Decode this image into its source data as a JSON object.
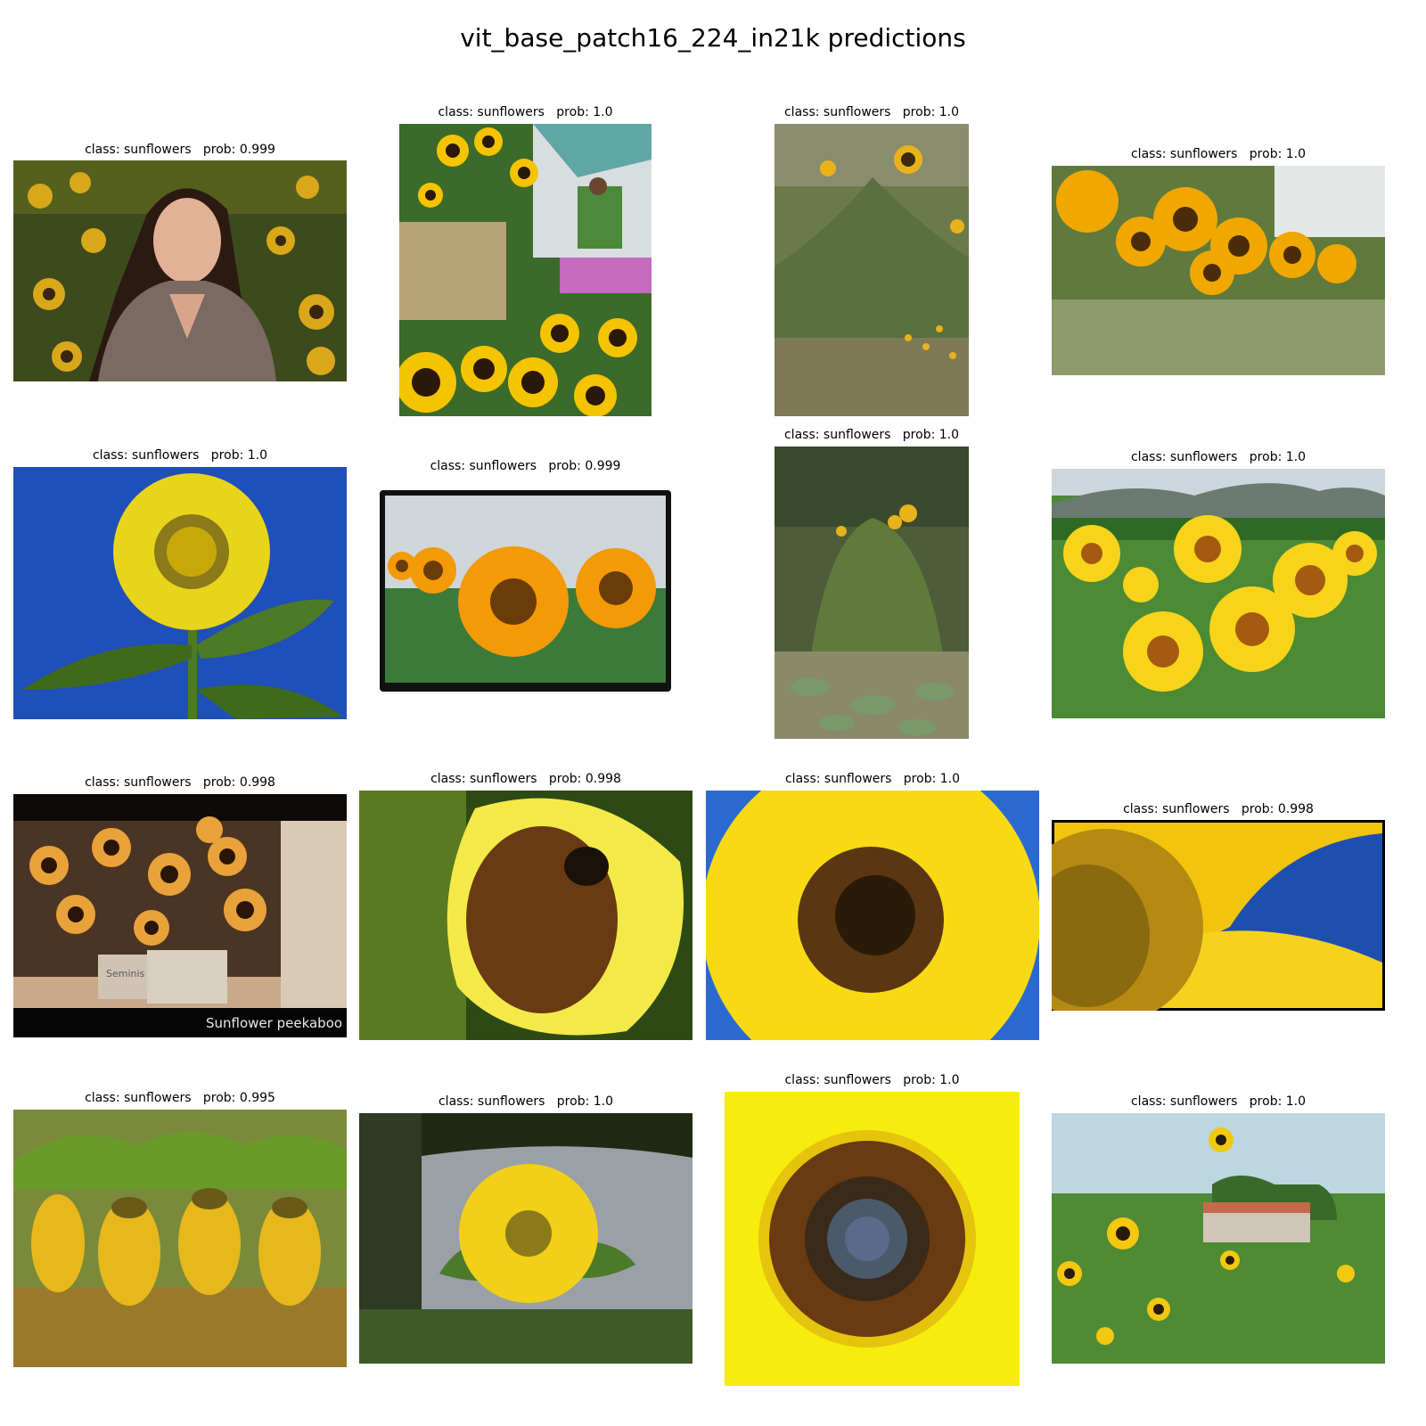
{
  "title": "vit_base_patch16_224_in21k predictions",
  "panels": [
    {
      "caption": "class: sunflowers   prob: 0.999",
      "scene": "portrait-in-field"
    },
    {
      "caption": "class: sunflowers   prob: 1.0",
      "scene": "bouquet-with-guitarist"
    },
    {
      "caption": "class: sunflowers   prob: 1.0",
      "scene": "tall-wild-sunflowers"
    },
    {
      "caption": "class: sunflowers   prob: 1.0",
      "scene": "blurred-field-row"
    },
    {
      "caption": "class: sunflowers   prob: 1.0",
      "scene": "single-flower-blue-sky"
    },
    {
      "caption": "class: sunflowers   prob: 0.999",
      "scene": "framed-orange-sunflowers"
    },
    {
      "caption": "class: sunflowers   prob: 1.0",
      "scene": "garden-plot"
    },
    {
      "caption": "class: sunflowers   prob: 1.0",
      "scene": "field-with-mountains"
    },
    {
      "caption": "class: sunflowers   prob: 0.998",
      "scene": "buckets-of-sunflowers",
      "overlay_text": "Sunflower peekaboo",
      "bucket_text": "Seminis"
    },
    {
      "caption": "class: sunflowers   prob: 0.998",
      "scene": "bee-on-flower"
    },
    {
      "caption": "class: sunflowers   prob: 1.0",
      "scene": "close-up-blue-sky"
    },
    {
      "caption": "class: sunflowers   prob: 0.998",
      "scene": "macro-petals-framed"
    },
    {
      "caption": "class: sunflowers   prob: 0.995",
      "scene": "drooping-sunflowers"
    },
    {
      "caption": "class: sunflowers   prob: 1.0",
      "scene": "flower-under-trees"
    },
    {
      "caption": "class: sunflowers   prob: 1.0",
      "scene": "flower-center-macro"
    },
    {
      "caption": "class: sunflowers   prob: 1.0",
      "scene": "field-with-barn"
    }
  ]
}
